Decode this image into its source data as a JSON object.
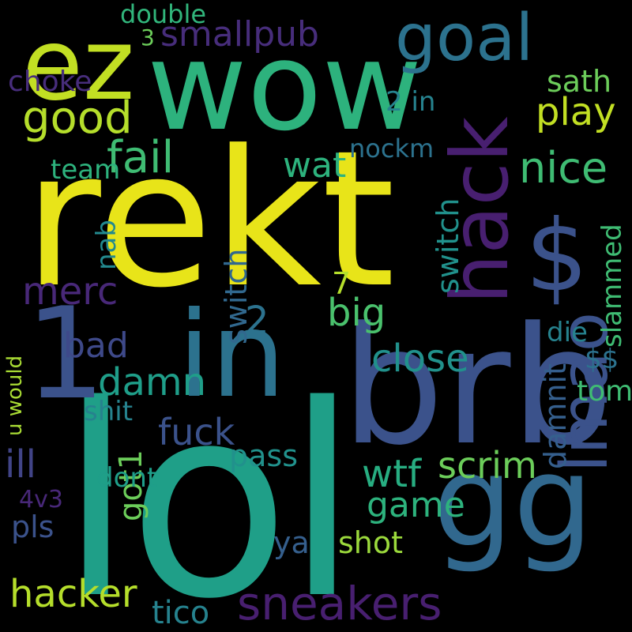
{
  "wordcloud": {
    "background": "#000000",
    "words": [
      {
        "text": "rekt",
        "color": "#e8e419"
      },
      {
        "text": "lol",
        "color": "#1f9f88"
      },
      {
        "text": "wow",
        "color": "#2db27d"
      },
      {
        "text": "brb",
        "color": "#3b528b"
      },
      {
        "text": "gg",
        "color": "#31688e"
      },
      {
        "text": "in",
        "color": "#2c728e"
      },
      {
        "text": "ez",
        "color": "#c2df23"
      },
      {
        "text": "1",
        "color": "#3b528b"
      },
      {
        "text": "hack",
        "color": "#481f70"
      },
      {
        "text": "goal",
        "color": "#2c728e"
      },
      {
        "text": "$",
        "color": "#3b528b"
      },
      {
        "text": "lmao",
        "color": "#3b528b"
      },
      {
        "text": "sneakers",
        "color": "#481f70"
      },
      {
        "text": "smallpub",
        "color": "#472d7b"
      },
      {
        "text": "good",
        "color": "#b5de2b"
      },
      {
        "text": "fail",
        "color": "#3fbc73"
      },
      {
        "text": "nice",
        "color": "#3fbc73"
      },
      {
        "text": "choke",
        "color": "#472d7b"
      },
      {
        "text": "double",
        "color": "#31b57b"
      },
      {
        "text": "play",
        "color": "#c2df23"
      },
      {
        "text": "sath",
        "color": "#6ccd5a"
      },
      {
        "text": "3",
        "color": "#6ccd5a"
      },
      {
        "text": "2 in",
        "color": "#26828e"
      },
      {
        "text": "nockm",
        "color": "#2c728e"
      },
      {
        "text": "wat",
        "color": "#2db27d"
      },
      {
        "text": "team",
        "color": "#2db27d"
      },
      {
        "text": "merc",
        "color": "#482878"
      },
      {
        "text": "nab",
        "color": "#23898e"
      },
      {
        "text": "switch",
        "color": "#21918c"
      },
      {
        "text": "switch",
        "color": "#31688e"
      },
      {
        "text": "slammed",
        "color": "#3fbc73"
      },
      {
        "text": "7",
        "color": "#b5de2b"
      },
      {
        "text": "2",
        "color": "#2c728e"
      },
      {
        "text": "big",
        "color": "#4ac16d"
      },
      {
        "text": "close",
        "color": "#21918c"
      },
      {
        "text": "bad",
        "color": "#3e4989"
      },
      {
        "text": "damn",
        "color": "#1f9e89"
      },
      {
        "text": "die",
        "color": "#26828e"
      },
      {
        "text": "tom",
        "color": "#3fbc73"
      },
      {
        "text": "damnit",
        "color": "#355f8d"
      },
      {
        "text": "$$",
        "color": "#2c728e"
      },
      {
        "text": "u would",
        "color": "#a8db34"
      },
      {
        "text": "fuck",
        "color": "#3b528b"
      },
      {
        "text": "shit",
        "color": "#26828e"
      },
      {
        "text": "pass",
        "color": "#21918c"
      },
      {
        "text": "scrim",
        "color": "#6ccd5a"
      },
      {
        "text": "wtf",
        "color": "#27ad81"
      },
      {
        "text": "got1",
        "color": "#6ccd5a"
      },
      {
        "text": "ill",
        "color": "#414487"
      },
      {
        "text": "dont",
        "color": "#1f9e89"
      },
      {
        "text": "game",
        "color": "#2db27d"
      },
      {
        "text": "4v3",
        "color": "#482878"
      },
      {
        "text": "pls",
        "color": "#3b528b"
      },
      {
        "text": "ya",
        "color": "#355f8d"
      },
      {
        "text": "shot",
        "color": "#9bd93c"
      },
      {
        "text": "hacker",
        "color": "#b5de2b"
      },
      {
        "text": "tico",
        "color": "#26828e"
      }
    ]
  }
}
